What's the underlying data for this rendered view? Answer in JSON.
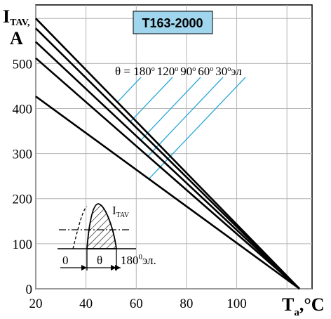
{
  "chart_data": {
    "type": "line",
    "title": "T163-2000",
    "xlabel": {
      "main": "T",
      "sub": "a",
      "unit": ",°C"
    },
    "ylabel": {
      "line1_main": "I",
      "line1_sub": "TAV,",
      "line2": "A"
    },
    "xlim": [
      20,
      130
    ],
    "ylim": [
      0,
      630
    ],
    "xticks": [
      "20",
      "40",
      "60",
      "80",
      "100"
    ],
    "yticks": [
      "0",
      "100",
      "200",
      "300",
      "400",
      "500"
    ],
    "series": [
      {
        "name": "180°",
        "points": [
          [
            20,
            600
          ],
          [
            125,
            0
          ]
        ]
      },
      {
        "name": "120°",
        "points": [
          [
            20,
            578
          ],
          [
            125,
            0
          ]
        ]
      },
      {
        "name": "90°",
        "points": [
          [
            20,
            548
          ],
          [
            125,
            0
          ]
        ]
      },
      {
        "name": "60°",
        "points": [
          [
            20,
            512
          ],
          [
            125,
            0
          ]
        ]
      },
      {
        "name": "30°",
        "points": [
          [
            20,
            427
          ],
          [
            125,
            0
          ]
        ]
      }
    ],
    "legend": {
      "prefix": "θ = ",
      "labels": [
        "180",
        "120",
        "90",
        "60",
        "30"
      ],
      "degree": "о",
      "suffix": "эл"
    },
    "inset": {
      "current_label_main": "I",
      "current_label_sub": "TAV",
      "zero_label": "0",
      "theta_label": "θ",
      "period_label": "180",
      "period_sup": "0",
      "period_suffix": "эл."
    },
    "colors": {
      "curves": "#000000",
      "legend_leaders": "#2aa6d6",
      "title_bg": "#9fd6ee"
    }
  }
}
